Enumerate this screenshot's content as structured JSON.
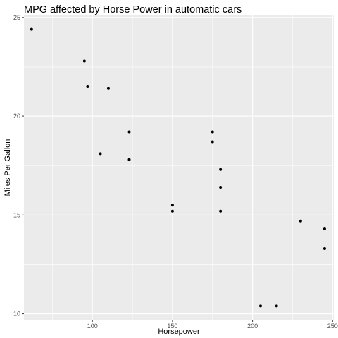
{
  "chart_data": {
    "type": "scatter",
    "title": "MPG affected by Horse Power in automatic cars",
    "xlabel": "Horsepower",
    "ylabel": "Miles Per Gallon",
    "xlim": [
      57.25,
      250.75
    ],
    "ylim": [
      9.7,
      25.1
    ],
    "xticks": [
      100,
      150,
      200,
      250
    ],
    "xticks_minor": [
      75,
      125,
      175,
      225
    ],
    "yticks": [
      10,
      15,
      20,
      25
    ],
    "yticks_minor": [
      12.5,
      17.5,
      22.5
    ],
    "grid": true,
    "legend": "none",
    "point_color": "#000000",
    "panel_color": "#ebebeb",
    "grid_color": "#ffffff",
    "points": [
      {
        "x": 62,
        "y": 24.4
      },
      {
        "x": 95,
        "y": 22.8
      },
      {
        "x": 97,
        "y": 21.5
      },
      {
        "x": 110,
        "y": 21.4
      },
      {
        "x": 105,
        "y": 18.1
      },
      {
        "x": 123,
        "y": 19.2
      },
      {
        "x": 123,
        "y": 17.8
      },
      {
        "x": 150,
        "y": 15.5
      },
      {
        "x": 150,
        "y": 15.2
      },
      {
        "x": 175,
        "y": 19.2
      },
      {
        "x": 175,
        "y": 18.7
      },
      {
        "x": 180,
        "y": 17.3
      },
      {
        "x": 180,
        "y": 16.4
      },
      {
        "x": 180,
        "y": 15.2
      },
      {
        "x": 205,
        "y": 10.4
      },
      {
        "x": 215,
        "y": 10.4
      },
      {
        "x": 230,
        "y": 14.7
      },
      {
        "x": 245,
        "y": 14.3
      },
      {
        "x": 245,
        "y": 13.3
      }
    ]
  }
}
